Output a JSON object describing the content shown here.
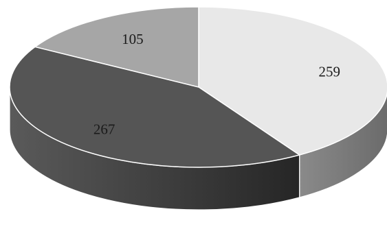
{
  "chart_data": {
    "type": "pie",
    "style": "3d",
    "title": "",
    "slices": [
      {
        "label": "259",
        "value": 259,
        "top_color": "#e8e8e8",
        "side_color": "#6b6b6b",
        "side_color_light": "#8a8a8a"
      },
      {
        "label": "267",
        "value": 267,
        "top_color": "#555555",
        "side_color": "#262626",
        "side_color_light": "#5a5a5a"
      },
      {
        "label": "105",
        "value": 105,
        "top_color": "#a6a6a6",
        "side_color": "#6e6e6e",
        "side_color_light": "#8d8d8d"
      }
    ],
    "legend": "none",
    "edge_color": "#ffffff"
  }
}
